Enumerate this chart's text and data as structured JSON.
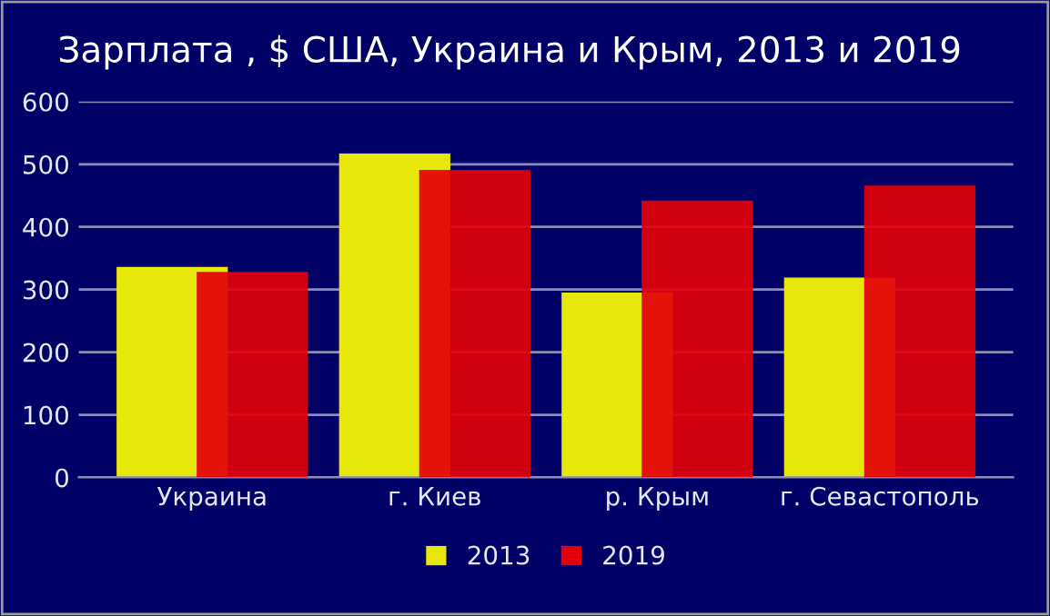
{
  "chart_data": {
    "type": "bar",
    "title": "Зарплата , $ США, Украина и Крым, 2013 и 2019",
    "categories": [
      "Украина",
      "г. Киев",
      "р. Крым",
      "г. Севастополь"
    ],
    "series": [
      {
        "name": "2013",
        "color": "#e8e70b",
        "values": [
          336,
          517,
          295,
          319
        ]
      },
      {
        "name": "2019",
        "color": "#e3000a",
        "values": [
          328,
          491,
          442,
          466
        ]
      }
    ],
    "ylim": [
      0,
      600
    ],
    "yticks": [
      0,
      100,
      200,
      300,
      400,
      500,
      600
    ],
    "grid": "y",
    "legend": "bottom"
  }
}
